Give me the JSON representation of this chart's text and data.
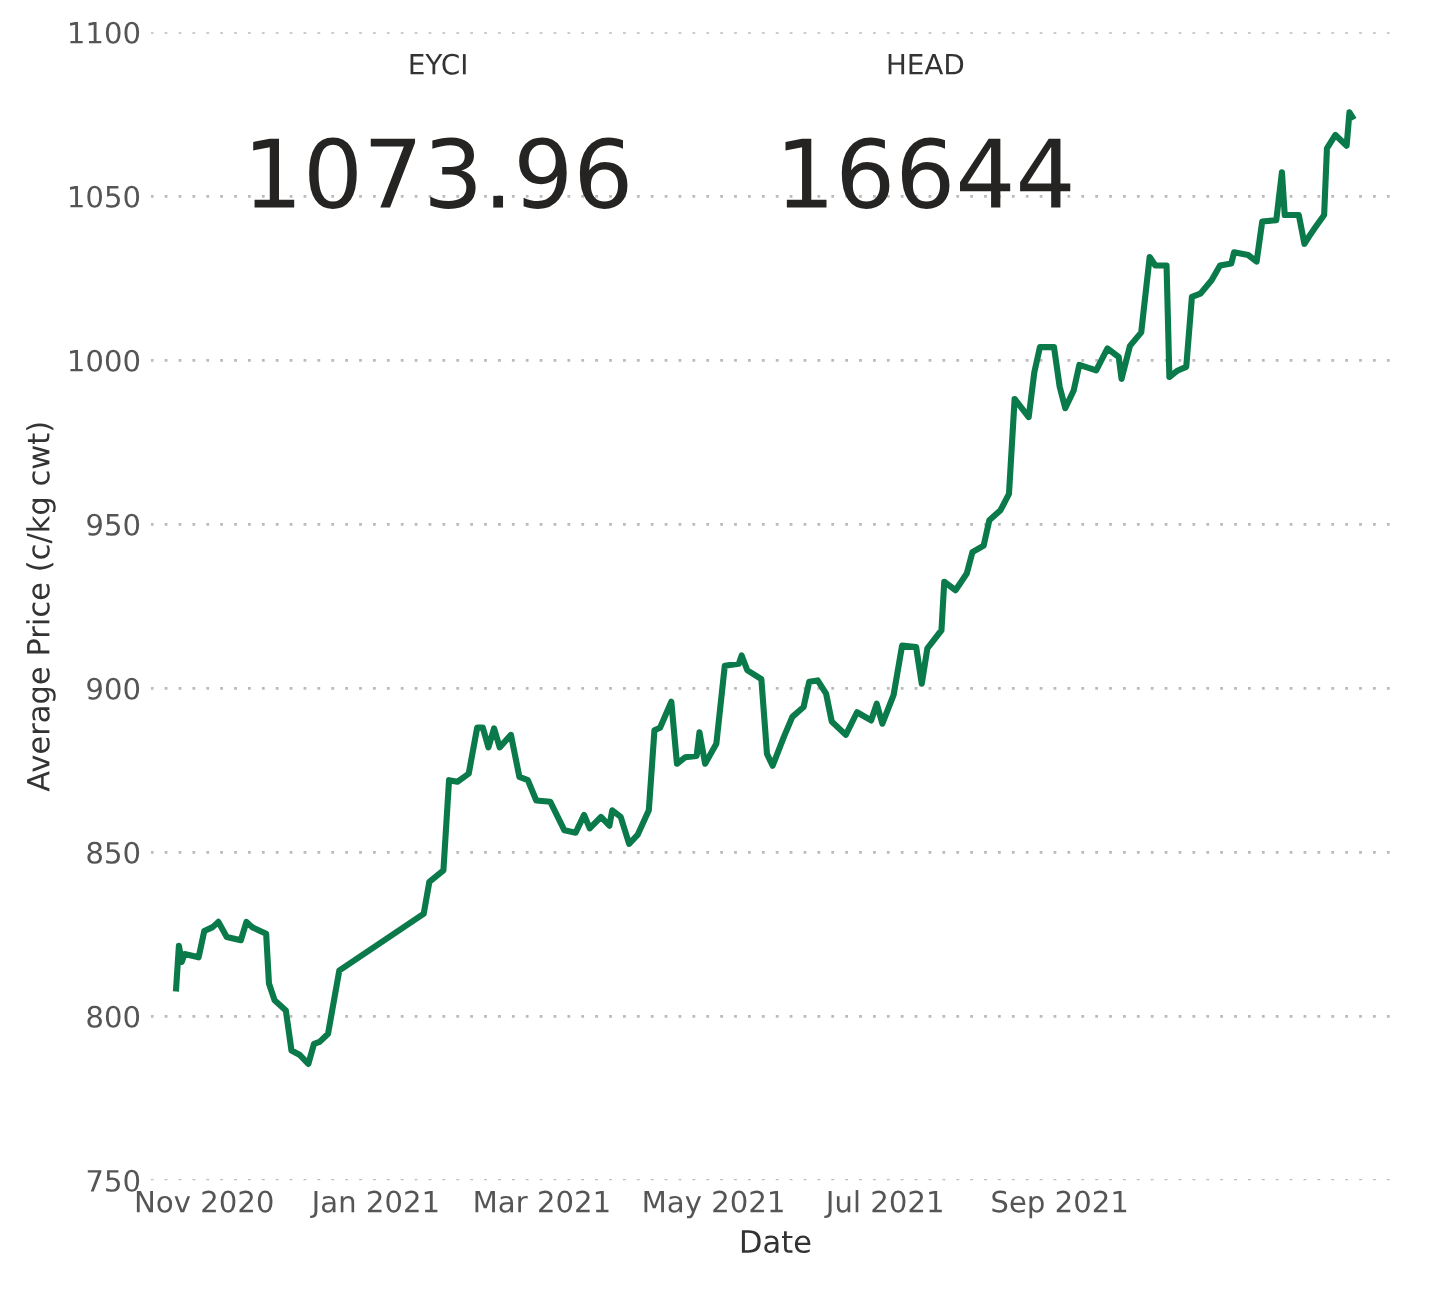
{
  "chart_data": {
    "type": "line",
    "xlabel": "Date",
    "ylabel": "Average Price (c/kg cwt)",
    "annotations": [
      "EYCI",
      "1073.96",
      "HEAD",
      "16644"
    ],
    "x": [
      "2020-10-22",
      "2020-10-23",
      "2020-10-24",
      "2020-10-25",
      "2020-10-30",
      "2020-11-01",
      "2020-11-04",
      "2020-11-06",
      "2020-11-09",
      "2020-11-14",
      "2020-11-16",
      "2020-11-18",
      "2020-11-23",
      "2020-11-24",
      "2020-11-26",
      "2020-11-30",
      "2020-12-02",
      "2020-12-05",
      "2020-12-08",
      "2020-12-10",
      "2020-12-12",
      "2020-12-15",
      "2020-12-19",
      "2021-01-18",
      "2021-01-20",
      "2021-01-25",
      "2021-01-27",
      "2021-01-30",
      "2021-02-03",
      "2021-02-06",
      "2021-02-08",
      "2021-02-10",
      "2021-02-12",
      "2021-02-14",
      "2021-02-18",
      "2021-02-21",
      "2021-02-24",
      "2021-02-27",
      "2021-03-04",
      "2021-03-09",
      "2021-03-13",
      "2021-03-16",
      "2021-03-18",
      "2021-03-22",
      "2021-03-25",
      "2021-03-26",
      "2021-03-29",
      "2021-04-01",
      "2021-04-04",
      "2021-04-08",
      "2021-04-10",
      "2021-04-12",
      "2021-04-16",
      "2021-04-18",
      "2021-04-21",
      "2021-04-25",
      "2021-04-26",
      "2021-04-28",
      "2021-05-02",
      "2021-05-05",
      "2021-05-10",
      "2021-05-11",
      "2021-05-13",
      "2021-05-18",
      "2021-05-20",
      "2021-05-22",
      "2021-05-26",
      "2021-05-29",
      "2021-06-02",
      "2021-06-04",
      "2021-06-07",
      "2021-06-10",
      "2021-06-12",
      "2021-06-17",
      "2021-06-21",
      "2021-06-26",
      "2021-06-28",
      "2021-06-30",
      "2021-07-04",
      "2021-07-07",
      "2021-07-12",
      "2021-07-14",
      "2021-07-16",
      "2021-07-21",
      "2021-07-22",
      "2021-07-26",
      "2021-07-30",
      "2021-08-01",
      "2021-08-05",
      "2021-08-07",
      "2021-08-11",
      "2021-08-14",
      "2021-08-16",
      "2021-08-21",
      "2021-08-23",
      "2021-08-25",
      "2021-08-30",
      "2021-09-01",
      "2021-09-03",
      "2021-09-06",
      "2021-09-08",
      "2021-09-14",
      "2021-09-18",
      "2021-09-22",
      "2021-09-23",
      "2021-09-26",
      "2021-09-30",
      "2021-10-03",
      "2021-10-05",
      "2021-10-09",
      "2021-10-10",
      "2021-10-13",
      "2021-10-16",
      "2021-10-18",
      "2021-10-21",
      "2021-10-25",
      "2021-10-28",
      "2021-11-01",
      "2021-11-02",
      "2021-11-07",
      "2021-11-10",
      "2021-11-12",
      "2021-11-17",
      "2021-11-19",
      "2021-11-20",
      "2021-11-25",
      "2021-11-27",
      "2021-11-29",
      "2021-12-01",
      "2021-12-04",
      "2021-12-05",
      "2021-12-08",
      "2021-12-12",
      "2021-12-13",
      "2021-12-14"
    ],
    "series": [
      {
        "color": "#0b7a4b",
        "values": [
          808.5,
          821.5,
          816.6,
          819,
          818,
          826,
          827.2,
          828.8,
          824.2,
          823.2,
          828.8,
          827.2,
          825.2,
          810,
          804.9,
          801.8,
          789.6,
          788.2,
          785.5,
          791.6,
          792.2,
          794.7,
          814,
          831.3,
          841,
          844.5,
          872,
          871.5,
          874,
          888,
          888,
          882,
          887.8,
          882,
          885.8,
          873,
          872,
          865.8,
          865.4,
          856.7,
          856,
          861.4,
          857.3,
          860.8,
          858.1,
          862.8,
          860.8,
          852.6,
          855.3,
          862.8,
          887.2,
          888,
          895.9,
          877,
          879,
          879.4,
          886.6,
          877,
          883.1,
          906.9,
          907.5,
          910,
          905.5,
          902.8,
          880,
          876.4,
          885.2,
          891.3,
          894.3,
          902,
          902.4,
          898.4,
          889.9,
          885.8,
          892.7,
          890.2,
          895.3,
          889.2,
          898,
          913,
          912.6,
          901.4,
          912.2,
          917.7,
          932.5,
          929.9,
          935,
          941.5,
          943.5,
          951.2,
          954.3,
          959.3,
          988.2,
          982.7,
          996.3,
          1004,
          1004,
          992,
          985.4,
          990.8,
          998.6,
          996.9,
          1003.6,
          1001,
          994.3,
          1004.4,
          1008.5,
          1031.5,
          1028.9,
          1028.9,
          994.9,
          996.9,
          998,
          1019.3,
          1020.3,
          1024.4,
          1028.9,
          1029.5,
          1032.9,
          1032.1,
          1030.1,
          1042.3,
          1042.7,
          1057.3,
          1044.3,
          1044.3,
          1035.5,
          1038.2,
          1040.7,
          1044.3,
          1064.6,
          1068.7,
          1065.4,
          1075.6,
          1074.2
        ]
      }
    ],
    "xlim": [
      "2020-10-13",
      "2021-12-31"
    ],
    "xticks": [
      {
        "value": "2020-11-01",
        "label": "Nov 2020"
      },
      {
        "value": "2021-01-01",
        "label": "Jan 2021"
      },
      {
        "value": "2021-03-01",
        "label": "Mar 2021"
      },
      {
        "value": "2021-05-01",
        "label": "May 2021"
      },
      {
        "value": "2021-07-01",
        "label": "Jul 2021"
      },
      {
        "value": "2021-09-01",
        "label": "Sep 2021"
      }
    ],
    "ylim": [
      750,
      1100
    ],
    "yticks": [
      750,
      800,
      850,
      900,
      950,
      1000,
      1050,
      1100
    ],
    "grid": "y",
    "legend": false,
    "marker": "none",
    "line_style": "solid"
  }
}
